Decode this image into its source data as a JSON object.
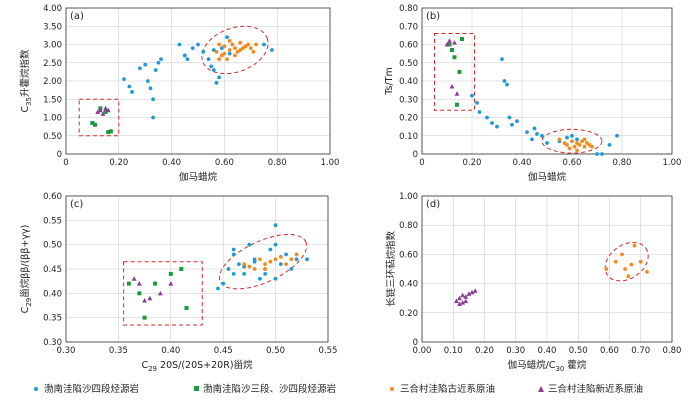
{
  "legend": [
    {
      "label": "渤南洼陷沙四段烃源岩",
      "marker": "circle",
      "color": "#1f9ad6"
    },
    {
      "label": "渤南洼陷沙三段、沙四段烃源岩",
      "marker": "square",
      "color": "#1a9a3c"
    },
    {
      "label": "三合村洼陷古近系原油",
      "marker": "circle",
      "color": "#f08c1e"
    },
    {
      "label": "三合村洼陷新近系原油",
      "marker": "triangle",
      "color": "#8a3d94"
    }
  ],
  "colors": {
    "blue": "#1f9ad6",
    "green": "#1a9a3c",
    "orange": "#f08c1e",
    "purple": "#8a3d94",
    "red": "#d62728"
  },
  "chart_data": [
    {
      "id": "a",
      "panel_label": "(a)",
      "type": "scatter",
      "xlabel_main": "伽马蜡烷",
      "xlabel_sub": "",
      "ylabel_main": "C",
      "ylabel_sub": "35",
      "ylabel_rest": "升藿烷指数",
      "xlim": [
        0,
        1.0
      ],
      "ylim": [
        0,
        4.0
      ],
      "xticks": [
        "0",
        "0.20",
        "0.40",
        "0.60",
        "0.80",
        "1.00"
      ],
      "yticks": [
        "0",
        "0.50",
        "1.00",
        "1.50",
        "2.00",
        "2.50",
        "3.00",
        "3.50",
        "4.00"
      ],
      "xtick_values": [
        0,
        0.2,
        0.4,
        0.6,
        0.8,
        1.0
      ],
      "ytick_values": [
        0,
        0.5,
        1.0,
        1.5,
        2.0,
        2.5,
        3.0,
        3.5,
        4.0
      ],
      "series": [
        {
          "name": "blue",
          "marker": "circle",
          "points": [
            [
              0.22,
              2.05
            ],
            [
              0.24,
              1.85
            ],
            [
              0.25,
              1.7
            ],
            [
              0.28,
              2.35
            ],
            [
              0.3,
              2.45
            ],
            [
              0.31,
              2.0
            ],
            [
              0.32,
              1.8
            ],
            [
              0.33,
              1.5
            ],
            [
              0.33,
              1.0
            ],
            [
              0.34,
              2.3
            ],
            [
              0.35,
              2.5
            ],
            [
              0.36,
              2.6
            ],
            [
              0.43,
              3.0
            ],
            [
              0.45,
              2.7
            ],
            [
              0.46,
              2.6
            ],
            [
              0.48,
              2.9
            ],
            [
              0.5,
              3.0
            ],
            [
              0.52,
              2.8
            ],
            [
              0.54,
              2.6
            ],
            [
              0.55,
              2.4
            ],
            [
              0.56,
              2.3
            ],
            [
              0.57,
              1.95
            ],
            [
              0.58,
              2.1
            ],
            [
              0.59,
              2.9
            ],
            [
              0.61,
              3.2
            ],
            [
              0.75,
              3.0
            ],
            [
              0.78,
              2.85
            ],
            [
              0.62,
              2.75
            ],
            [
              0.56,
              2.85
            ]
          ]
        },
        {
          "name": "orange",
          "marker": "circle",
          "points": [
            [
              0.57,
              2.8
            ],
            [
              0.58,
              3.0
            ],
            [
              0.59,
              2.7
            ],
            [
              0.6,
              2.95
            ],
            [
              0.61,
              2.6
            ],
            [
              0.62,
              2.85
            ],
            [
              0.63,
              3.0
            ],
            [
              0.64,
              2.9
            ],
            [
              0.65,
              2.8
            ],
            [
              0.66,
              3.05
            ],
            [
              0.67,
              2.9
            ],
            [
              0.68,
              2.95
            ],
            [
              0.6,
              2.75
            ],
            [
              0.62,
              3.1
            ],
            [
              0.64,
              2.7
            ],
            [
              0.66,
              2.85
            ],
            [
              0.69,
              3.0
            ],
            [
              0.7,
              2.9
            ],
            [
              0.71,
              2.8
            ],
            [
              0.72,
              3.0
            ],
            [
              0.58,
              2.6
            ]
          ]
        },
        {
          "name": "green",
          "marker": "square",
          "points": [
            [
              0.1,
              0.85
            ],
            [
              0.11,
              0.8
            ],
            [
              0.13,
              1.25
            ],
            [
              0.15,
              1.15
            ],
            [
              0.16,
              0.6
            ],
            [
              0.17,
              0.62
            ]
          ]
        },
        {
          "name": "purple",
          "marker": "triangle",
          "points": [
            [
              0.12,
              1.15
            ],
            [
              0.13,
              1.2
            ],
            [
              0.14,
              1.1
            ],
            [
              0.15,
              1.25
            ],
            [
              0.16,
              1.2
            ]
          ]
        }
      ],
      "ellipses": [
        {
          "cx": 0.64,
          "cy": 2.85,
          "rx": 0.13,
          "ry": 0.6,
          "angle": -20
        }
      ],
      "rects": [
        {
          "x0": 0.05,
          "y0": 0.5,
          "x1": 0.2,
          "y1": 1.5
        }
      ]
    },
    {
      "id": "b",
      "panel_label": "(b)",
      "type": "scatter",
      "xlabel_main": "伽马蜡烷",
      "xlabel_sub": "",
      "ylabel_main": "Ts/Tm",
      "ylabel_sub": "",
      "ylabel_rest": "",
      "xlim": [
        0,
        1.0
      ],
      "ylim": [
        0,
        0.8
      ],
      "xticks": [
        "0",
        "0.20",
        "0.40",
        "0.60",
        "0.80",
        "1.00"
      ],
      "yticks": [
        "0",
        "0.10",
        "0.20",
        "0.30",
        "0.40",
        "0.50",
        "0.60",
        "0.70",
        "0.80"
      ],
      "xtick_values": [
        0,
        0.2,
        0.4,
        0.6,
        0.8,
        1.0
      ],
      "ytick_values": [
        0,
        0.1,
        0.2,
        0.3,
        0.4,
        0.5,
        0.6,
        0.7,
        0.8
      ],
      "series": [
        {
          "name": "blue",
          "marker": "circle",
          "points": [
            [
              0.2,
              0.32
            ],
            [
              0.22,
              0.28
            ],
            [
              0.23,
              0.23
            ],
            [
              0.26,
              0.2
            ],
            [
              0.28,
              0.17
            ],
            [
              0.3,
              0.15
            ],
            [
              0.32,
              0.52
            ],
            [
              0.33,
              0.4
            ],
            [
              0.34,
              0.38
            ],
            [
              0.35,
              0.2
            ],
            [
              0.36,
              0.16
            ],
            [
              0.38,
              0.18
            ],
            [
              0.42,
              0.12
            ],
            [
              0.44,
              0.08
            ],
            [
              0.45,
              0.14
            ],
            [
              0.46,
              0.11
            ],
            [
              0.48,
              0.1
            ],
            [
              0.5,
              0.06
            ],
            [
              0.55,
              0.07
            ],
            [
              0.58,
              0.09
            ],
            [
              0.6,
              0.1
            ],
            [
              0.62,
              0.08
            ],
            [
              0.75,
              0.05
            ],
            [
              0.78,
              0.1
            ],
            [
              0.7,
              0.0
            ],
            [
              0.72,
              0.0
            ]
          ]
        },
        {
          "name": "orange",
          "marker": "circle",
          "points": [
            [
              0.55,
              0.08
            ],
            [
              0.57,
              0.06
            ],
            [
              0.58,
              0.05
            ],
            [
              0.6,
              0.07
            ],
            [
              0.61,
              0.04
            ],
            [
              0.62,
              0.06
            ],
            [
              0.63,
              0.05
            ],
            [
              0.64,
              0.07
            ],
            [
              0.65,
              0.04
            ],
            [
              0.66,
              0.06
            ],
            [
              0.67,
              0.05
            ],
            [
              0.68,
              0.04
            ],
            [
              0.59,
              0.03
            ],
            [
              0.62,
              0.02
            ],
            [
              0.65,
              0.08
            ]
          ]
        },
        {
          "name": "green",
          "marker": "square",
          "points": [
            [
              0.11,
              0.6
            ],
            [
              0.12,
              0.57
            ],
            [
              0.13,
              0.53
            ],
            [
              0.15,
              0.45
            ],
            [
              0.16,
              0.63
            ],
            [
              0.14,
              0.27
            ]
          ]
        },
        {
          "name": "purple",
          "marker": "triangle",
          "points": [
            [
              0.1,
              0.6
            ],
            [
              0.11,
              0.62
            ],
            [
              0.12,
              0.37
            ],
            [
              0.14,
              0.33
            ],
            [
              0.13,
              0.61
            ]
          ]
        }
      ],
      "ellipses": [
        {
          "cx": 0.6,
          "cy": 0.07,
          "rx": 0.12,
          "ry": 0.065,
          "angle": 0
        }
      ],
      "rects": [
        {
          "x0": 0.05,
          "y0": 0.24,
          "x1": 0.21,
          "y1": 0.66
        }
      ]
    },
    {
      "id": "c",
      "panel_label": "(c)",
      "type": "scatter",
      "xlabel_main": "C",
      "xlabel_sub": "29",
      "xlabel_rest": " 20S/(20S+20R)甾烷",
      "ylabel_main": "C",
      "ylabel_sub": "29",
      "ylabel_rest": "甾烷ββ/(ββ+γγ)",
      "xlim": [
        0.3,
        0.55
      ],
      "ylim": [
        0.3,
        0.6
      ],
      "xticks": [
        "0.30",
        "0.35",
        "0.40",
        "0.45",
        "0.50",
        "0.55"
      ],
      "yticks": [
        "0.30",
        "0.35",
        "0.40",
        "0.45",
        "0.50",
        "0.55",
        "0.60"
      ],
      "xtick_values": [
        0.3,
        0.35,
        0.4,
        0.45,
        0.5,
        0.55
      ],
      "ytick_values": [
        0.3,
        0.35,
        0.4,
        0.45,
        0.5,
        0.55,
        0.6
      ],
      "series": [
        {
          "name": "blue",
          "marker": "circle",
          "points": [
            [
              0.45,
              0.42
            ],
            [
              0.455,
              0.45
            ],
            [
              0.46,
              0.48
            ],
            [
              0.465,
              0.46
            ],
            [
              0.47,
              0.44
            ],
            [
              0.475,
              0.5
            ],
            [
              0.48,
              0.47
            ],
            [
              0.485,
              0.43
            ],
            [
              0.49,
              0.45
            ],
            [
              0.495,
              0.49
            ],
            [
              0.5,
              0.54
            ],
            [
              0.505,
              0.46
            ],
            [
              0.51,
              0.48
            ],
            [
              0.515,
              0.45
            ],
            [
              0.52,
              0.47
            ],
            [
              0.46,
              0.44
            ],
            [
              0.47,
              0.455
            ],
            [
              0.48,
              0.465
            ],
            [
              0.49,
              0.44
            ],
            [
              0.5,
              0.43
            ],
            [
              0.445,
              0.41
            ],
            [
              0.53,
              0.47
            ],
            [
              0.46,
              0.49
            ],
            [
              0.5,
              0.5
            ]
          ]
        },
        {
          "name": "orange",
          "marker": "circle",
          "points": [
            [
              0.47,
              0.46
            ],
            [
              0.48,
              0.45
            ],
            [
              0.485,
              0.47
            ],
            [
              0.49,
              0.46
            ],
            [
              0.495,
              0.465
            ],
            [
              0.5,
              0.47
            ],
            [
              0.505,
              0.475
            ],
            [
              0.51,
              0.46
            ],
            [
              0.515,
              0.47
            ],
            [
              0.52,
              0.48
            ],
            [
              0.475,
              0.455
            ],
            [
              0.49,
              0.45
            ]
          ]
        },
        {
          "name": "green",
          "marker": "square",
          "points": [
            [
              0.36,
              0.42
            ],
            [
              0.37,
              0.4
            ],
            [
              0.375,
              0.35
            ],
            [
              0.385,
              0.42
            ],
            [
              0.4,
              0.44
            ],
            [
              0.41,
              0.45
            ],
            [
              0.415,
              0.37
            ]
          ]
        },
        {
          "name": "purple",
          "marker": "triangle",
          "points": [
            [
              0.365,
              0.43
            ],
            [
              0.37,
              0.42
            ],
            [
              0.38,
              0.39
            ],
            [
              0.39,
              0.4
            ],
            [
              0.4,
              0.42
            ],
            [
              0.375,
              0.385
            ]
          ]
        }
      ],
      "ellipses": [
        {
          "cx": 0.488,
          "cy": 0.465,
          "rx": 0.045,
          "ry": 0.042,
          "angle": -25
        }
      ],
      "rects": [
        {
          "x0": 0.355,
          "y0": 0.335,
          "x1": 0.43,
          "y1": 0.465
        }
      ]
    },
    {
      "id": "d",
      "panel_label": "(d)",
      "type": "scatter",
      "xlabel_main": "伽马蜡烷/C",
      "xlabel_sub": "30",
      "xlabel_rest": " 藿烷",
      "ylabel_main": "长链三环萜烷指数",
      "ylabel_sub": "",
      "ylabel_rest": "",
      "xlim": [
        0,
        0.8
      ],
      "ylim": [
        0,
        1.0
      ],
      "xticks": [
        "0.00",
        "0.10",
        "0.20",
        "0.30",
        "0.40",
        "0.50",
        "0.60",
        "0.70",
        "0.80"
      ],
      "yticks": [
        "0",
        "0.20",
        "0.40",
        "0.60",
        "0.80",
        "1.00"
      ],
      "xtick_values": [
        0,
        0.1,
        0.2,
        0.3,
        0.4,
        0.5,
        0.6,
        0.7,
        0.8
      ],
      "ytick_values": [
        0,
        0.2,
        0.4,
        0.6,
        0.8,
        1.0
      ],
      "series": [
        {
          "name": "orange",
          "marker": "circle",
          "points": [
            [
              0.59,
              0.5
            ],
            [
              0.62,
              0.55
            ],
            [
              0.64,
              0.6
            ],
            [
              0.65,
              0.5
            ],
            [
              0.66,
              0.45
            ],
            [
              0.67,
              0.53
            ],
            [
              0.68,
              0.66
            ],
            [
              0.7,
              0.55
            ],
            [
              0.72,
              0.48
            ]
          ]
        },
        {
          "name": "purple",
          "marker": "triangle",
          "points": [
            [
              0.11,
              0.28
            ],
            [
              0.12,
              0.3
            ],
            [
              0.12,
              0.26
            ],
            [
              0.13,
              0.32
            ],
            [
              0.14,
              0.31
            ],
            [
              0.15,
              0.33
            ],
            [
              0.16,
              0.34
            ],
            [
              0.14,
              0.28
            ],
            [
              0.13,
              0.27
            ],
            [
              0.17,
              0.35
            ]
          ]
        }
      ],
      "ellipses": [
        {
          "cx": 0.655,
          "cy": 0.55,
          "rx": 0.075,
          "ry": 0.115,
          "angle": -35
        }
      ],
      "rects": []
    }
  ]
}
